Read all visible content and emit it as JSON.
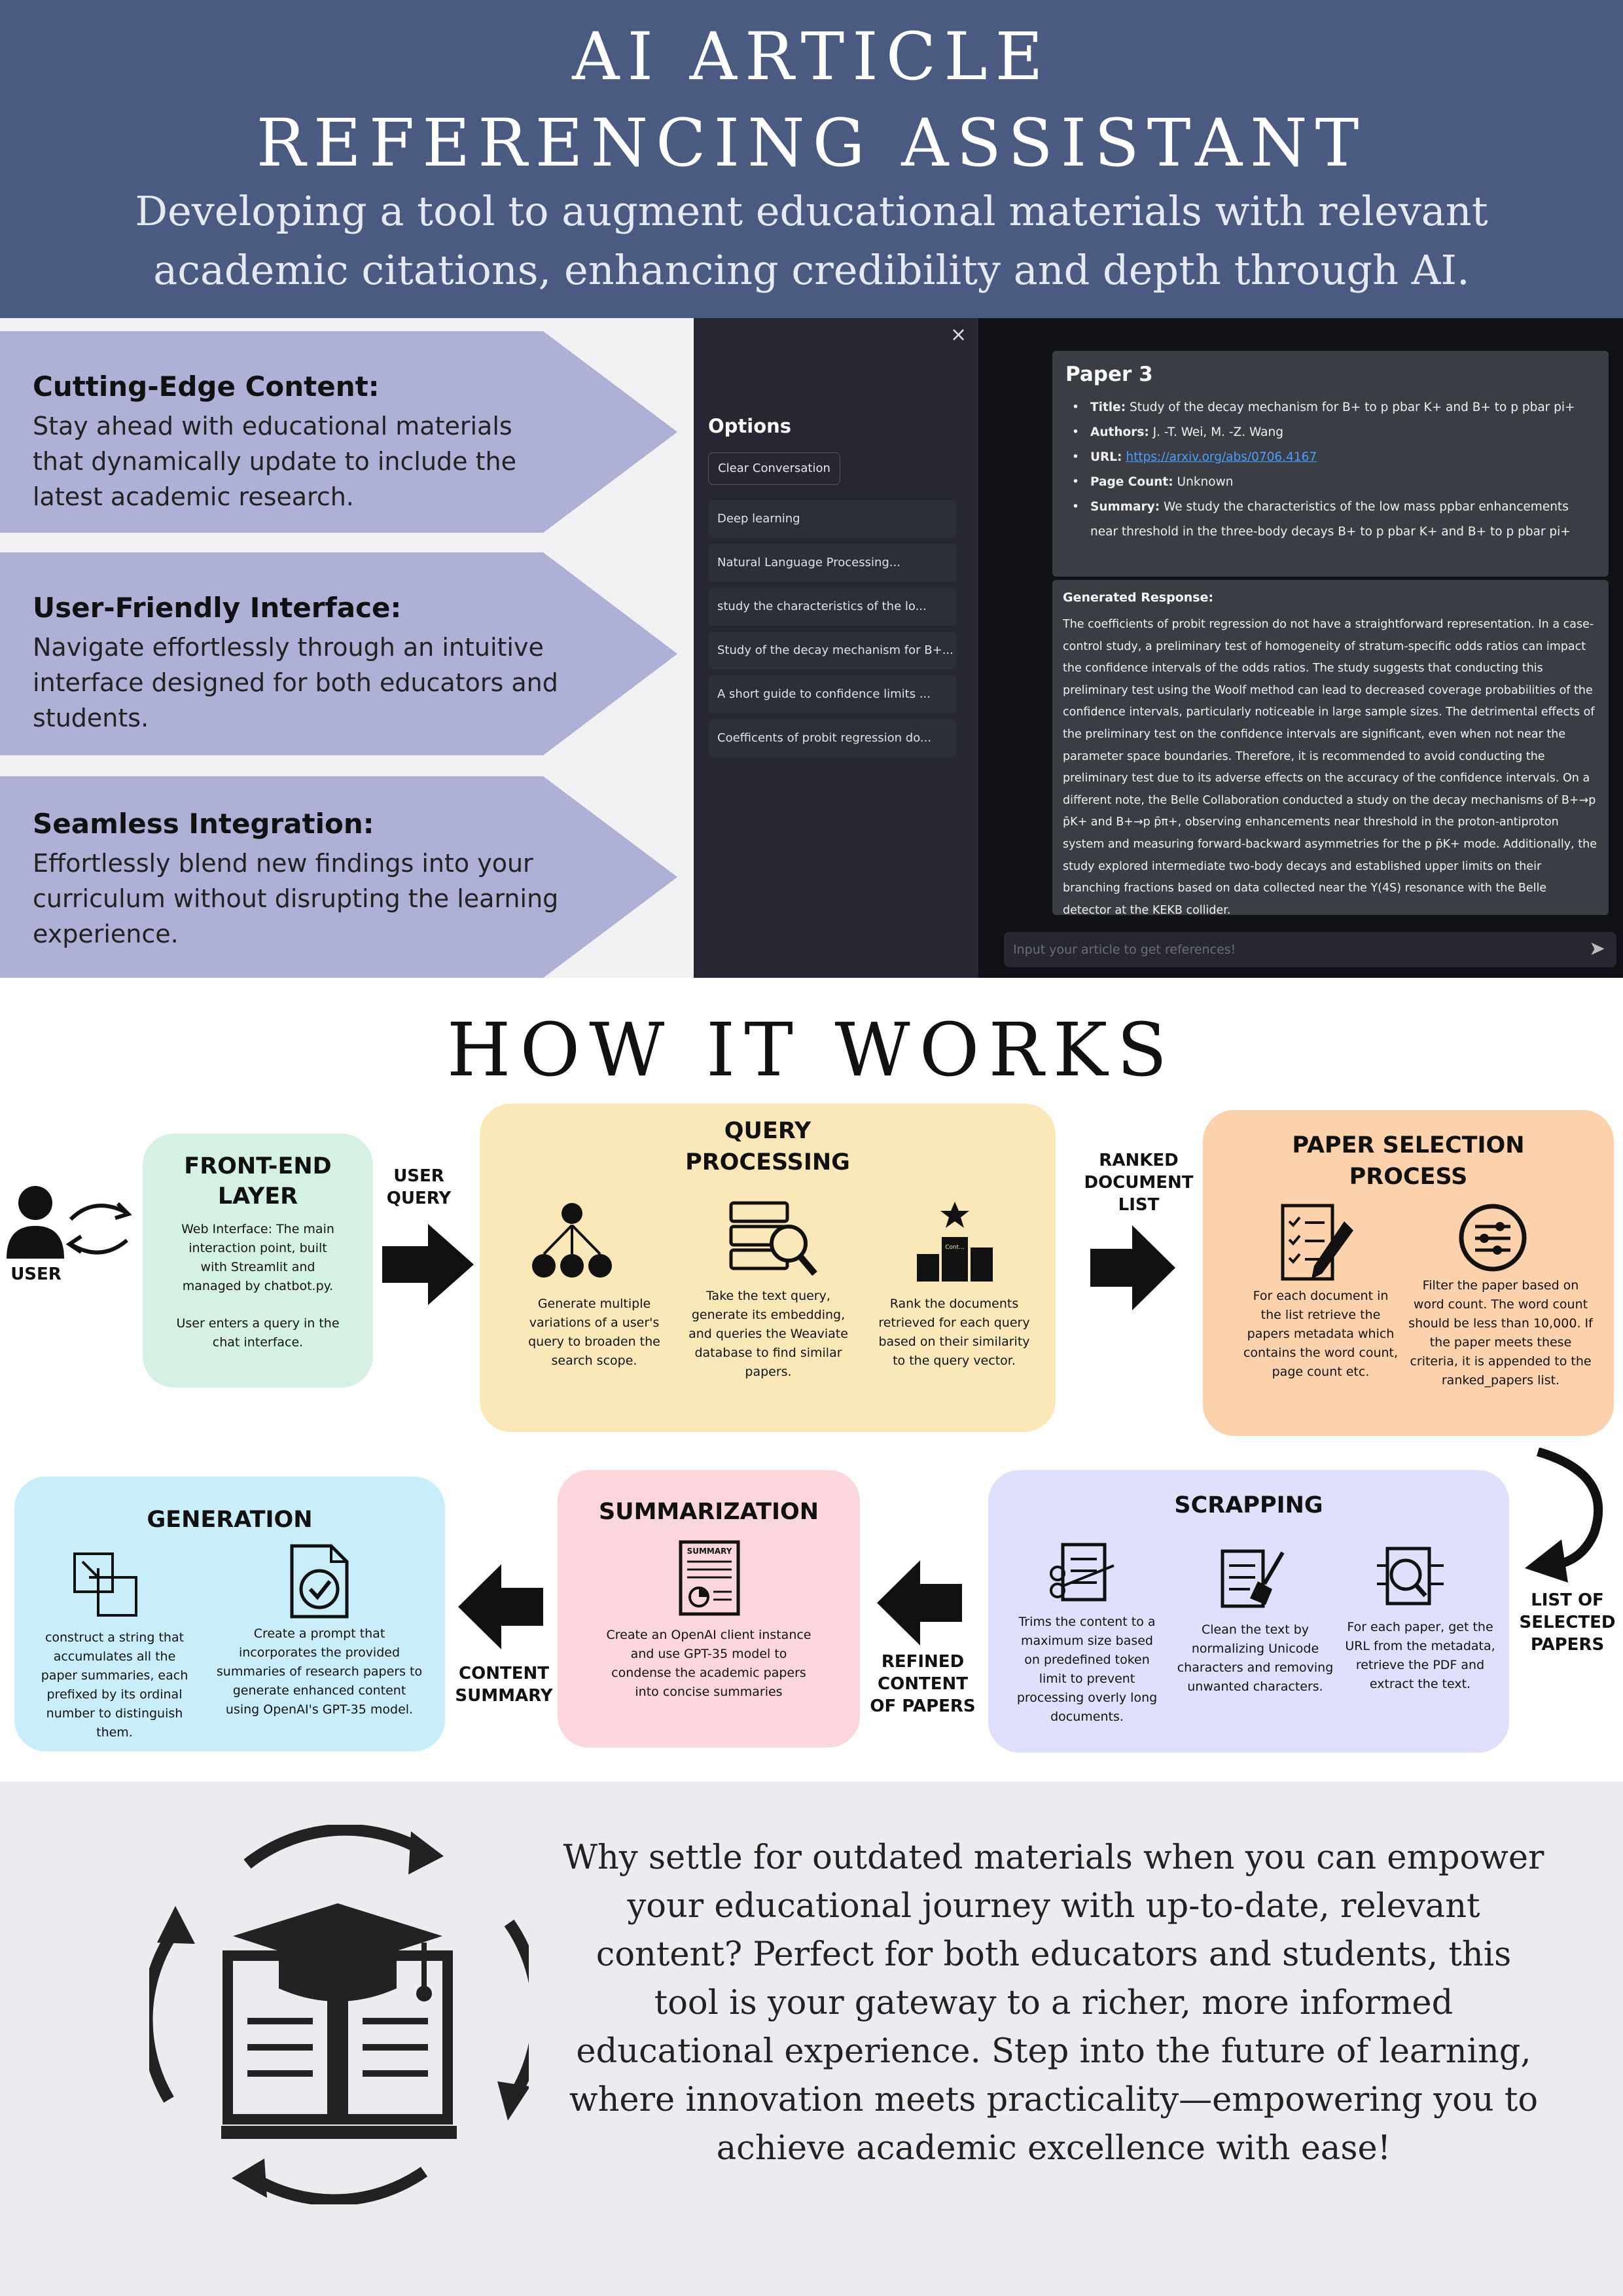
{
  "header": {
    "title_line1": "AI ARTICLE",
    "title_line2": "REFERENCING ASSISTANT",
    "subtitle": "Developing a tool to augment educational materials with relevant academic citations, enhancing credibility and depth through AI."
  },
  "features": [
    {
      "title": "Cutting-Edge Content:",
      "text": "Stay ahead with educational materials that dynamically update to include the latest academic research."
    },
    {
      "title": "User-Friendly Interface:",
      "text": "Navigate effortlessly through an intuitive interface designed for both educators and students."
    },
    {
      "title": "Seamless Integration:",
      "text": "Effortlessly blend new findings into your curriculum without disrupting the learning experience."
    }
  ],
  "app": {
    "close_glyph": "×",
    "options_title": "Options",
    "clear_button": "Clear Conversation",
    "history": [
      "Deep learning",
      "Natural Language Processing...",
      "study the characteristics of the lo...",
      "Study of the decay mechanism for B+...",
      "A short guide to confidence limits ...",
      "Coefficents of probit regression do..."
    ],
    "paper": {
      "title": "Paper 3",
      "title_label": "Title:",
      "title_value": "Study of the decay mechanism for B+ to p pbar K+ and B+ to p pbar pi+",
      "authors_label": "Authors:",
      "authors_value": "J. -T. Wei, M. -Z. Wang",
      "url_label": "URL:",
      "url_value": "https://arxiv.org/abs/0706.4167",
      "pagecount_label": "Page Count:",
      "pagecount_value": "Unknown",
      "summary_label": "Summary:",
      "summary_value": "We study the characteristics of the low mass ppbar enhancements near threshold in the three-body decays B+ to p pbar K+ and B+ to p pbar pi+"
    },
    "response_label": "Generated Response:",
    "response_text": "The coefficients of probit regression do not have a straightforward representation. In a case-control study, a preliminary test of homogeneity of stratum-specific odds ratios can impact the confidence intervals of the odds ratios. The study suggests that conducting this preliminary test using the Woolf method can lead to decreased coverage probabilities of the confidence intervals, particularly noticeable in large sample sizes. The detrimental effects of the preliminary test on the confidence intervals are significant, even when not near the parameter space boundaries. Therefore, it is recommended to avoid conducting the preliminary test due to its adverse effects on the accuracy of the confidence intervals. On a different note, the Belle Collaboration conducted a study on the decay mechanisms of B+→p p̄K+ and B+→p p̄π+, observing enhancements near threshold in the proton-antiproton system and measuring forward-backward asymmetries for the p p̄K+ mode. Additionally, the study explored intermediate two-body decays and established upper limits on their branching fractions based on data collected near the Υ(4S) resonance with the Belle detector at the KEKB collider.",
    "input_placeholder": "Input your article to get references!",
    "send_glyph": "➤"
  },
  "how": {
    "title": "HOW IT WORKS",
    "user_label": "USER",
    "frontend": {
      "title_l1": "FRONT-END",
      "title_l2": "LAYER",
      "desc1": "Web Interface: The main interaction point, built with Streamlit and managed by chatbot.py.",
      "desc2": "User enters a query in the chat interface."
    },
    "user_query_l1": "USER",
    "user_query_l2": "QUERY",
    "query": {
      "title_l1": "QUERY",
      "title_l2": "PROCESSING",
      "step1": "Generate multiple variations of a user's query to broaden the search scope.",
      "step2": "Take the text query, generate its embedding, and queries the Weaviate database to find similar papers.",
      "step3": "Rank the documents retrieved for each query based on their similarity to the query vector."
    },
    "ranked_l1": "RANKED",
    "ranked_l2": "DOCUMENT",
    "ranked_l3": "LIST",
    "selection": {
      "title_l1": "PAPER SELECTION",
      "title_l2": "PROCESS",
      "step1": "For each document in the list retrieve the papers metadata which contains the word count, page count etc.",
      "step2": "Filter the paper based on word count. The word count should be less than 10,000. If the paper meets these criteria, it is appended to the ranked_papers list."
    },
    "selected_l1": "LIST OF",
    "selected_l2": "SELECTED",
    "selected_l3": "PAPERS",
    "scrapping": {
      "title": "SCRAPPING",
      "step1": "Trims the content to a maximum size based on predefined token limit to prevent processing overly long documents.",
      "step2": "Clean the text by normalizing Unicode characters and removing unwanted characters.",
      "step3": "For each paper, get the URL from the metadata, retrieve the PDF and extract the text."
    },
    "refined_l1": "REFINED",
    "refined_l2": "CONTENT",
    "refined_l3": "OF PAPERS",
    "summarization": {
      "title": "SUMMARIZATION",
      "doc_label": "SUMMARY",
      "desc": "Create an OpenAI client instance and use GPT-35 model to condense the academic papers into concise summaries"
    },
    "content_summary_l1": "CONTENT",
    "content_summary_l2": "SUMMARY",
    "generation": {
      "title": "GENERATION",
      "step1": "construct a string that accumulates all the paper summaries, each prefixed by its ordinal number to distinguish them.",
      "step2": "Create a prompt that incorporates the provided summaries of research papers to generate enhanced content using OpenAI's GPT-35 model."
    },
    "rank_icon_label": "Cont..."
  },
  "colors": {
    "header_bg": "#4a5a80",
    "arrow_fill": "#aeb0d6",
    "frontend_bg": "#d5f1e4",
    "query_bg": "#fbe8b9",
    "selection_bg": "#fbd2ab",
    "scrapping_bg": "#dfe0fb",
    "summarization_bg": "#fbd6dd",
    "generation_bg": "#c9eef9"
  },
  "bottom": {
    "text": "Why settle for outdated materials when you can empower your educational journey with up-to-date, relevant content? Perfect for both educators and students, this tool is your gateway to a richer, more informed educational experience. Step into the future of learning, where innovation meets practicality—empowering you to achieve academic excellence with ease!"
  }
}
